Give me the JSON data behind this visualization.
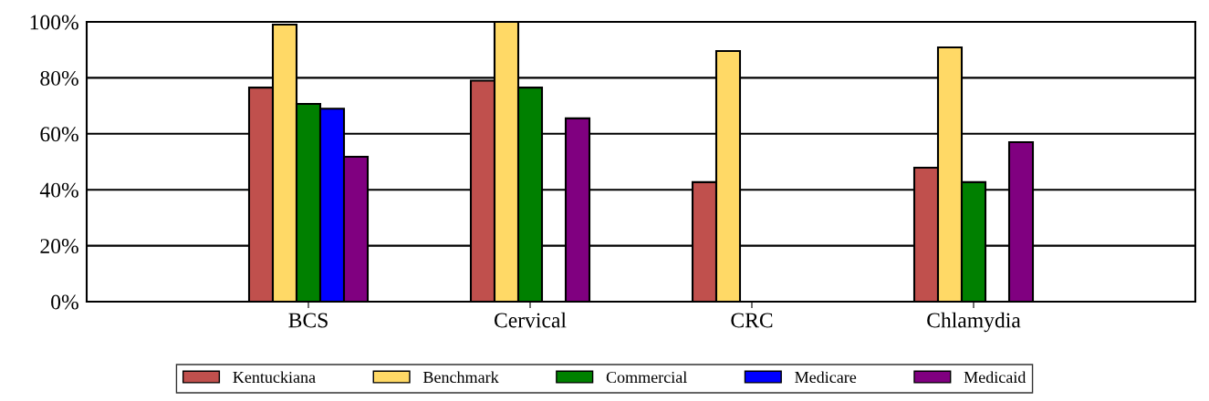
{
  "chart_data": {
    "type": "bar",
    "categories": [
      null,
      "BCS",
      "Cervical",
      "CRC",
      "Chlamydia",
      null
    ],
    "series": [
      {
        "name": "Kentuckiana",
        "color": "#c0504d",
        "values": [
          null,
          76.5,
          79,
          42.7,
          47.9,
          null
        ]
      },
      {
        "name": "Benchmark",
        "color": "#ffd966",
        "values": [
          null,
          99,
          100,
          89.6,
          90.9,
          null
        ]
      },
      {
        "name": "Commercial",
        "color": "#008000",
        "values": [
          null,
          70.7,
          76.5,
          null,
          42.7,
          null
        ]
      },
      {
        "name": "Medicare",
        "color": "#0000ff",
        "values": [
          null,
          69,
          null,
          null,
          null,
          null
        ]
      },
      {
        "name": "Medicaid",
        "color": "#800080",
        "values": [
          null,
          51.8,
          65.5,
          null,
          57,
          null
        ]
      }
    ],
    "ylim": [
      0,
      100
    ],
    "yticks": [
      {
        "value": 0,
        "label": "0%"
      },
      {
        "value": 20,
        "label": "20%"
      },
      {
        "value": 40,
        "label": "40%"
      },
      {
        "value": 60,
        "label": "60%"
      },
      {
        "value": 80,
        "label": "80%"
      },
      {
        "value": 100,
        "label": "100%"
      }
    ],
    "grid": "y",
    "legend": "bottom"
  }
}
